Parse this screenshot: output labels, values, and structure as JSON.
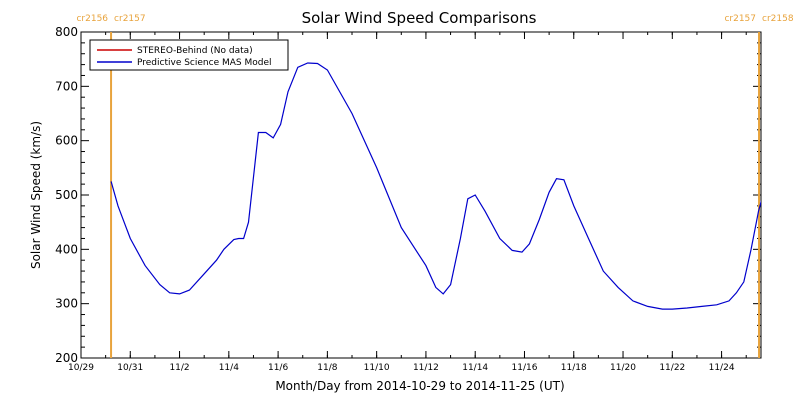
{
  "chart_data": {
    "type": "line",
    "title": "Solar Wind Speed Comparisons",
    "xlabel": "Month/Day from 2014-10-29 to 2014-11-25 (UT)",
    "ylabel": "Solar Wind Speed (km/s)",
    "xlim": [
      0,
      27.6
    ],
    "ylim": [
      200,
      800
    ],
    "x_ticks": [
      {
        "day": 0,
        "label": "10/29"
      },
      {
        "day": 2,
        "label": "10/31"
      },
      {
        "day": 4,
        "label": "11/2"
      },
      {
        "day": 6,
        "label": "11/4"
      },
      {
        "day": 8,
        "label": "11/6"
      },
      {
        "day": 10,
        "label": "11/8"
      },
      {
        "day": 12,
        "label": "11/10"
      },
      {
        "day": 14,
        "label": "11/12"
      },
      {
        "day": 16,
        "label": "11/14"
      },
      {
        "day": 18,
        "label": "11/16"
      },
      {
        "day": 20,
        "label": "11/18"
      },
      {
        "day": 22,
        "label": "11/20"
      },
      {
        "day": 24,
        "label": "11/22"
      },
      {
        "day": 26,
        "label": "11/24"
      }
    ],
    "y_ticks": [
      200,
      300,
      400,
      500,
      600,
      700,
      800
    ],
    "grid": false,
    "legend_position": "top-left",
    "carrington_markers": [
      {
        "day": 1.22,
        "left_label": "cr2156",
        "right_label": "cr2157",
        "color": "#e8a33c"
      },
      {
        "day": 27.52,
        "left_label": "cr2157",
        "right_label": "cr2158",
        "color": "#e8a33c"
      }
    ],
    "series": [
      {
        "name": "STEREO-Behind (No data)",
        "color": "#cc0000",
        "x": [],
        "y": []
      },
      {
        "name": "Predictive Science MAS Model",
        "color": "#0000cc",
        "x": [
          1.22,
          1.5,
          2.0,
          2.6,
          3.2,
          3.6,
          4.0,
          4.4,
          5.0,
          5.5,
          5.8,
          6.2,
          6.4,
          6.6,
          6.8,
          7.2,
          7.5,
          7.8,
          8.1,
          8.4,
          8.8,
          9.2,
          9.6,
          10.0,
          11.0,
          12.0,
          13.0,
          14.0,
          14.4,
          14.7,
          15.0,
          15.4,
          15.7,
          16.0,
          16.4,
          17.0,
          17.5,
          17.9,
          18.2,
          18.6,
          19.0,
          19.3,
          19.6,
          20.0,
          20.6,
          21.2,
          21.8,
          22.4,
          23.0,
          23.6,
          24.0,
          24.6,
          25.2,
          25.8,
          26.3,
          26.6,
          26.9,
          27.2,
          27.5,
          27.8,
          28.0,
          28.2,
          28.4,
          28.6
        ],
        "y": [
          525,
          480,
          420,
          370,
          335,
          320,
          318,
          325,
          355,
          380,
          400,
          418,
          420,
          420,
          450,
          615,
          615,
          605,
          630,
          690,
          735,
          743,
          742,
          730,
          650,
          550,
          440,
          370,
          330,
          318,
          335,
          420,
          493,
          500,
          470,
          420,
          398,
          395,
          410,
          455,
          505,
          530,
          528,
          480,
          420,
          360,
          330,
          305,
          295,
          290,
          290,
          292,
          295,
          298,
          305,
          320,
          340,
          400,
          470,
          520,
          528,
          515,
          490,
          475
        ]
      }
    ]
  }
}
